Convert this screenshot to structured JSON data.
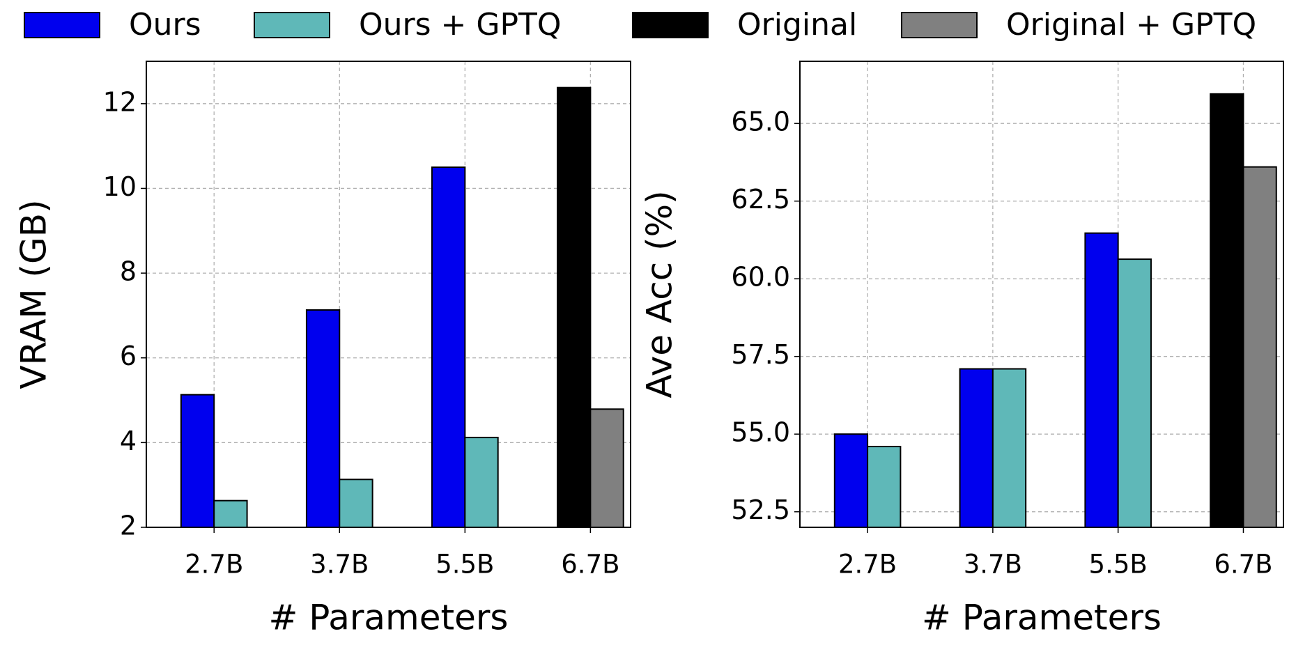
{
  "chart_data": [
    {
      "type": "bar",
      "xlabel": "# Parameters",
      "ylabel": "VRAM (GB)",
      "categories": [
        "2.7B",
        "3.7B",
        "5.5B",
        "6.7B"
      ],
      "series": [
        {
          "name": "Ours",
          "color": "#0000ee",
          "values": [
            5.13,
            7.13,
            10.5,
            null
          ]
        },
        {
          "name": "Ours + GPTQ",
          "color": "#5fb8b8",
          "values": [
            2.63,
            3.13,
            4.12,
            null
          ]
        },
        {
          "name": "Original",
          "color": "#000000",
          "values": [
            null,
            null,
            null,
            12.38
          ]
        },
        {
          "name": "Original + GPTQ",
          "color": "#808080",
          "values": [
            null,
            null,
            null,
            4.79
          ]
        }
      ],
      "ylim": [
        2,
        13
      ],
      "yticks": [
        2,
        4,
        6,
        8,
        10,
        12
      ],
      "grid": true
    },
    {
      "type": "bar",
      "xlabel": "# Parameters",
      "ylabel": "Ave Acc (%)",
      "categories": [
        "2.7B",
        "3.7B",
        "5.5B",
        "6.7B"
      ],
      "series": [
        {
          "color": "#0000ee",
          "values": [
            55.0,
            57.1,
            61.47,
            null
          ]
        },
        {
          "color": "#5fb8b8",
          "values": [
            54.6,
            57.1,
            60.63,
            null
          ]
        },
        {
          "color": "#000000",
          "values": [
            null,
            null,
            null,
            65.95
          ]
        },
        {
          "color": "#808080",
          "values": [
            null,
            null,
            null,
            63.6
          ]
        }
      ],
      "ylim": [
        52,
        67
      ],
      "yticks": [
        52.5,
        {
          "value": 55,
          "label": "55.0"
        },
        57.5,
        {
          "value": 60,
          "label": "60.0"
        },
        62.5,
        {
          "value": 65,
          "label": "65.0"
        }
      ],
      "grid": true
    }
  ]
}
